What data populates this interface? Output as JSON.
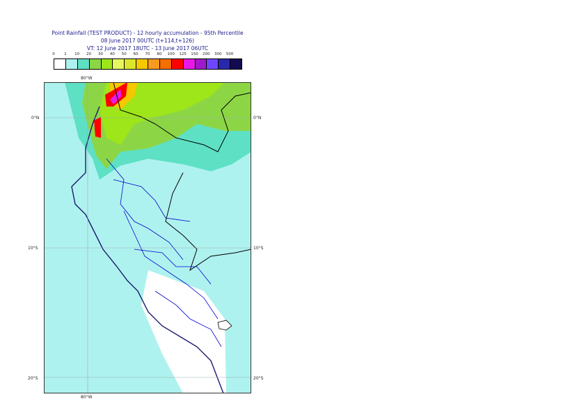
{
  "title": {
    "line1": "Point Rainfall (TEST PRODUCT) - 12 hourly accumulation - 95th Percentile",
    "line2": "08 June 2017 00UTC (t+114,t+126)",
    "line3": "VT: 12 June 2017 18UTC - 13 June 2017 06UTC"
  },
  "legend": {
    "thresholds": [
      "0",
      "1",
      "10",
      "20",
      "30",
      "40",
      "50",
      "60",
      "70",
      "80",
      "100",
      "125",
      "150",
      "200",
      "300",
      "500"
    ],
    "colors": [
      "#ffffff",
      "#aef2ef",
      "#5ee0c4",
      "#8cd646",
      "#9ee619",
      "#e6f560",
      "#dce62a",
      "#f5c800",
      "#f59b1e",
      "#f56e00",
      "#ff0000",
      "#e619e6",
      "#a019c8",
      "#6e46ff",
      "#2828aa",
      "#140a50"
    ]
  },
  "axes": {
    "top_lon": "80°W",
    "bottom_lon": "80°W",
    "lat_left": [
      "0°N",
      "10°S",
      "20°S"
    ],
    "lat_right": [
      "0°N",
      "10°S",
      "20°S"
    ]
  },
  "map": {
    "ocean_color": "#aef2ef",
    "coast_color": "#1a1a6e",
    "border_color": "#0000cc"
  }
}
